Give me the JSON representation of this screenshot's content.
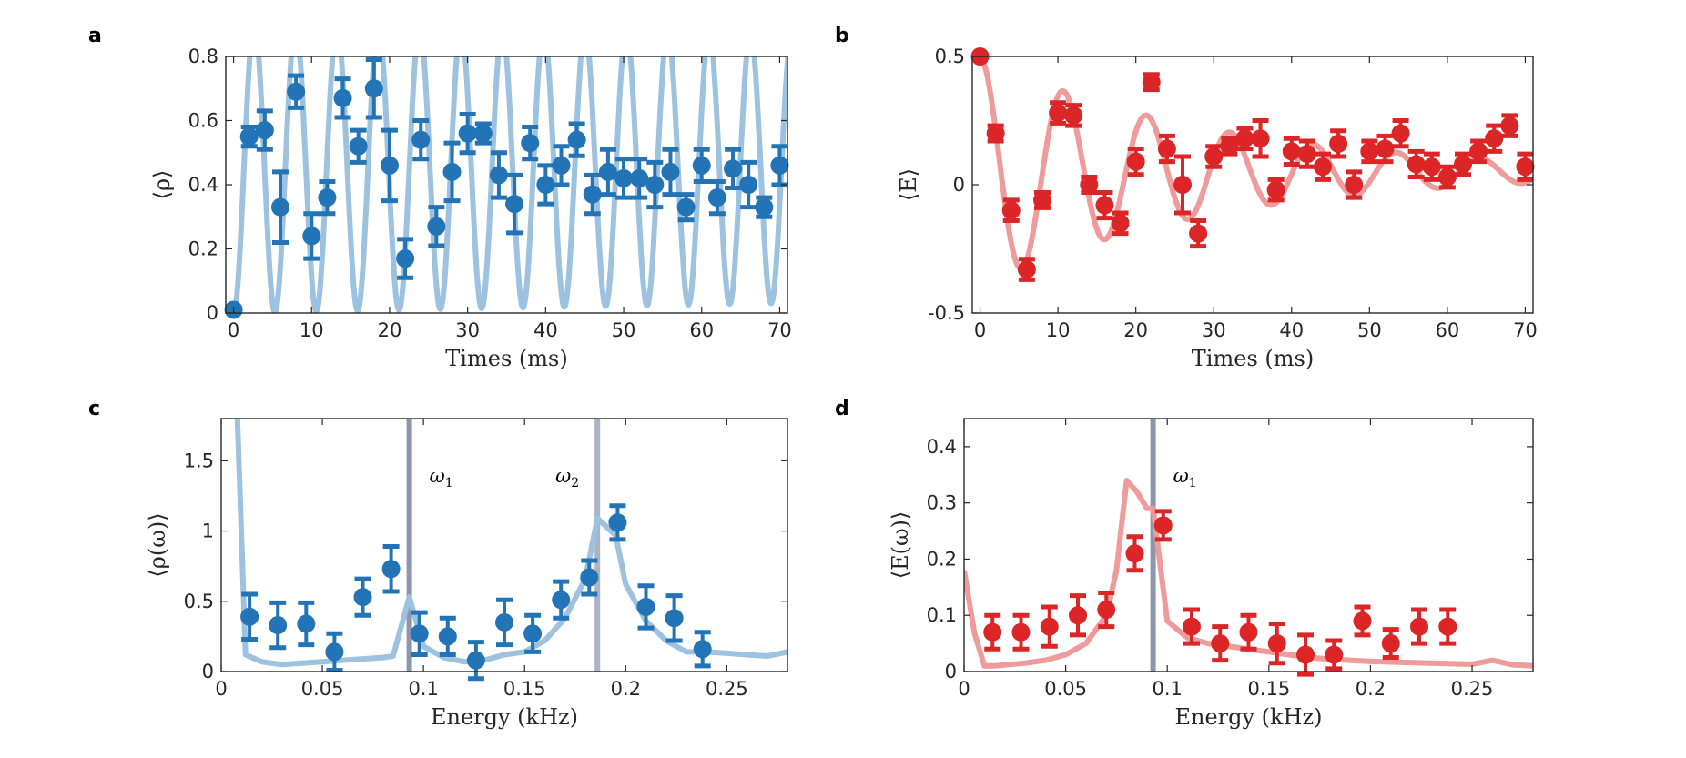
{
  "colors": {
    "blue_dark": "#2274b6",
    "blue_light": "#9cc2e0",
    "red_dark": "#db2526",
    "red_light": "#ee9b9b",
    "vline_1": "#8c96ad",
    "vline_2": "#adb3c3",
    "axis": "#262626"
  },
  "chart_data": [
    {
      "id": "a",
      "panel_label": "a",
      "type": "scatter",
      "xlabel": "Times (ms)",
      "ylabel": "⟨ρ⟩",
      "xlim": [
        -1,
        71
      ],
      "ylim": [
        0,
        0.8
      ],
      "xticks": [
        0,
        10,
        20,
        30,
        40,
        50,
        60,
        70
      ],
      "xtick_labels": [
        "0",
        "10",
        "20",
        "30",
        "40",
        "50",
        "60",
        "70"
      ],
      "yticks": [
        0,
        0.2,
        0.4,
        0.6,
        0.8
      ],
      "ytick_labels": [
        "0",
        "0.2",
        "0.4",
        "0.6",
        "0.8"
      ],
      "colors": {
        "points": "#2274b6",
        "fit": "#9cc2e0"
      },
      "fit_model": {
        "type": "damped_cosine",
        "offset": 0.45,
        "components": [
          {
            "amplitude": -0.45,
            "decay_ms": 999,
            "period_ms": 5.3
          }
        ]
      },
      "points": {
        "x": [
          0,
          2,
          4,
          6,
          8,
          10,
          12,
          14,
          16,
          18,
          20,
          22,
          24,
          26,
          28,
          30,
          32,
          34,
          36,
          38,
          40,
          42,
          44,
          46,
          48,
          50,
          52,
          54,
          56,
          58,
          60,
          62,
          64,
          66,
          68,
          70
        ],
        "y": [
          0.01,
          0.55,
          0.57,
          0.33,
          0.69,
          0.24,
          0.36,
          0.67,
          0.52,
          0.7,
          0.46,
          0.17,
          0.54,
          0.27,
          0.44,
          0.56,
          0.56,
          0.43,
          0.34,
          0.53,
          0.4,
          0.46,
          0.54,
          0.37,
          0.44,
          0.42,
          0.42,
          0.4,
          0.44,
          0.33,
          0.46,
          0.36,
          0.45,
          0.4,
          0.33,
          0.46
        ],
        "err": [
          0.0,
          0.03,
          0.06,
          0.11,
          0.05,
          0.07,
          0.05,
          0.06,
          0.05,
          0.09,
          0.11,
          0.06,
          0.06,
          0.06,
          0.09,
          0.06,
          0.03,
          0.07,
          0.09,
          0.05,
          0.06,
          0.06,
          0.05,
          0.06,
          0.07,
          0.06,
          0.06,
          0.07,
          0.07,
          0.04,
          0.05,
          0.05,
          0.06,
          0.07,
          0.03,
          0.06
        ]
      }
    },
    {
      "id": "b",
      "panel_label": "b",
      "type": "scatter",
      "xlabel": "Times (ms)",
      "ylabel": "⟨E⟩",
      "xlim": [
        -1,
        71
      ],
      "ylim": [
        -0.5,
        0.5
      ],
      "xticks": [
        0,
        10,
        20,
        30,
        40,
        50,
        60,
        70
      ],
      "xtick_labels": [
        "0",
        "10",
        "20",
        "30",
        "40",
        "50",
        "60",
        "70"
      ],
      "yticks": [
        -0.5,
        0,
        0.5
      ],
      "ytick_labels": [
        "-0.5",
        "0",
        "0.5"
      ],
      "colors": {
        "points": "#db2526",
        "fit": "#ee9b9b"
      },
      "fit_model": {
        "type": "damped_cosine",
        "offset": 0.05,
        "components": [
          {
            "amplitude": 0.45,
            "decay_ms": 30,
            "period_ms": 10.7
          }
        ]
      },
      "points": {
        "x": [
          0,
          2,
          4,
          6,
          8,
          10,
          12,
          14,
          16,
          18,
          20,
          22,
          24,
          26,
          28,
          30,
          32,
          34,
          36,
          38,
          40,
          42,
          44,
          46,
          48,
          50,
          52,
          54,
          56,
          58,
          60,
          62,
          64,
          66,
          68,
          70
        ],
        "y": [
          0.5,
          0.2,
          -0.1,
          -0.33,
          -0.06,
          0.28,
          0.27,
          0.0,
          -0.08,
          -0.15,
          0.09,
          0.4,
          0.14,
          0.0,
          -0.19,
          0.11,
          0.15,
          0.18,
          0.18,
          -0.02,
          0.13,
          0.12,
          0.07,
          0.16,
          0.0,
          0.13,
          0.14,
          0.2,
          0.08,
          0.07,
          0.03,
          0.08,
          0.13,
          0.18,
          0.23,
          0.07
        ]
      }
    },
    {
      "id": "c",
      "panel_label": "c",
      "type": "scatter",
      "xlabel": "Energy (kHz)",
      "ylabel": "⟨ρ(ω)⟩",
      "xlim": [
        0,
        0.28
      ],
      "ylim": [
        0,
        1.8
      ],
      "xticks": [
        0,
        0.05,
        0.1,
        0.15,
        0.2,
        0.25
      ],
      "xtick_labels": [
        "0",
        "0.05",
        "0.1",
        "0.15",
        "0.2",
        "0.25"
      ],
      "yticks": [
        0,
        0.5,
        1,
        1.5
      ],
      "ytick_labels": [
        "0",
        "0.5",
        "1",
        "1.5"
      ],
      "colors": {
        "points": "#2274b6",
        "fit": "#9cc2e0"
      },
      "vlines": [
        {
          "x": 0.093,
          "label": "ω",
          "sub": "1",
          "color": "#8c96ad"
        },
        {
          "x": 0.186,
          "label": "ω",
          "sub": "2",
          "color": "#adb3c3"
        }
      ],
      "fit_line": {
        "x": [
          0.008,
          0.012,
          0.02,
          0.03,
          0.04,
          0.05,
          0.06,
          0.07,
          0.08,
          0.085,
          0.093,
          0.1,
          0.11,
          0.12,
          0.13,
          0.14,
          0.15,
          0.16,
          0.17,
          0.18,
          0.186,
          0.195,
          0.2,
          0.21,
          0.22,
          0.23,
          0.24,
          0.25,
          0.26,
          0.27,
          0.28
        ],
        "y": [
          1.8,
          0.12,
          0.07,
          0.05,
          0.06,
          0.07,
          0.08,
          0.09,
          0.1,
          0.11,
          0.53,
          0.18,
          0.1,
          0.07,
          0.08,
          0.12,
          0.14,
          0.22,
          0.38,
          0.66,
          1.09,
          0.97,
          0.62,
          0.36,
          0.22,
          0.14,
          0.14,
          0.13,
          0.12,
          0.11,
          0.14
        ]
      },
      "points": {
        "x": [
          0.014,
          0.028,
          0.042,
          0.056,
          0.07,
          0.084,
          0.098,
          0.112,
          0.126,
          0.14,
          0.154,
          0.168,
          0.182,
          0.196,
          0.21,
          0.224,
          0.238
        ],
        "y": [
          0.39,
          0.33,
          0.34,
          0.14,
          0.53,
          0.73,
          0.27,
          0.25,
          0.08,
          0.35,
          0.27,
          0.51,
          0.67,
          1.06,
          0.46,
          0.38,
          0.16
        ],
        "err": [
          0.16,
          0.16,
          0.15,
          0.13,
          0.13,
          0.16,
          0.15,
          0.13,
          0.13,
          0.16,
          0.13,
          0.13,
          0.12,
          0.12,
          0.15,
          0.16,
          0.12
        ]
      }
    },
    {
      "id": "d",
      "panel_label": "d",
      "type": "scatter",
      "xlabel": "Energy (kHz)",
      "ylabel": "⟨E(ω)⟩",
      "xlim": [
        0,
        0.28
      ],
      "ylim": [
        0,
        0.45
      ],
      "xticks": [
        0,
        0.05,
        0.1,
        0.15,
        0.2,
        0.25
      ],
      "xtick_labels": [
        "0",
        "0.05",
        "0.1",
        "0.15",
        "0.2",
        "0.25"
      ],
      "yticks": [
        0,
        0.1,
        0.2,
        0.3,
        0.4
      ],
      "ytick_labels": [
        "0",
        "0.1",
        "0.2",
        "0.3",
        "0.4"
      ],
      "colors": {
        "points": "#db2526",
        "fit": "#ee9b9b"
      },
      "vlines": [
        {
          "x": 0.093,
          "label": "ω",
          "sub": "1",
          "color": "#8c96ad"
        }
      ],
      "fit_line": {
        "x": [
          0,
          0.005,
          0.01,
          0.015,
          0.03,
          0.04,
          0.05,
          0.06,
          0.07,
          0.075,
          0.08,
          0.085,
          0.09,
          0.093,
          0.1,
          0.11,
          0.12,
          0.13,
          0.14,
          0.15,
          0.16,
          0.17,
          0.18,
          0.19,
          0.2,
          0.21,
          0.22,
          0.23,
          0.24,
          0.25,
          0.26,
          0.27,
          0.28
        ],
        "y": [
          0.18,
          0.07,
          0.01,
          0.01,
          0.015,
          0.02,
          0.03,
          0.05,
          0.1,
          0.18,
          0.34,
          0.32,
          0.29,
          0.29,
          0.09,
          0.06,
          0.05,
          0.045,
          0.04,
          0.035,
          0.03,
          0.025,
          0.022,
          0.02,
          0.018,
          0.017,
          0.016,
          0.015,
          0.014,
          0.013,
          0.02,
          0.012,
          0.01
        ]
      },
      "points": {
        "x": [
          0.014,
          0.028,
          0.042,
          0.056,
          0.07,
          0.084,
          0.098,
          0.112,
          0.126,
          0.14,
          0.154,
          0.168,
          0.182,
          0.196,
          0.21,
          0.224,
          0.238
        ],
        "y": [
          0.07,
          0.07,
          0.08,
          0.1,
          0.11,
          0.21,
          0.26,
          0.08,
          0.05,
          0.07,
          0.05,
          0.03,
          0.03,
          0.09,
          0.05,
          0.08,
          0.08
        ],
        "err": [
          0.03,
          0.03,
          0.035,
          0.035,
          0.03,
          0.03,
          0.025,
          0.03,
          0.03,
          0.03,
          0.035,
          0.035,
          0.025,
          0.025,
          0.025,
          0.03,
          0.03
        ]
      }
    }
  ]
}
